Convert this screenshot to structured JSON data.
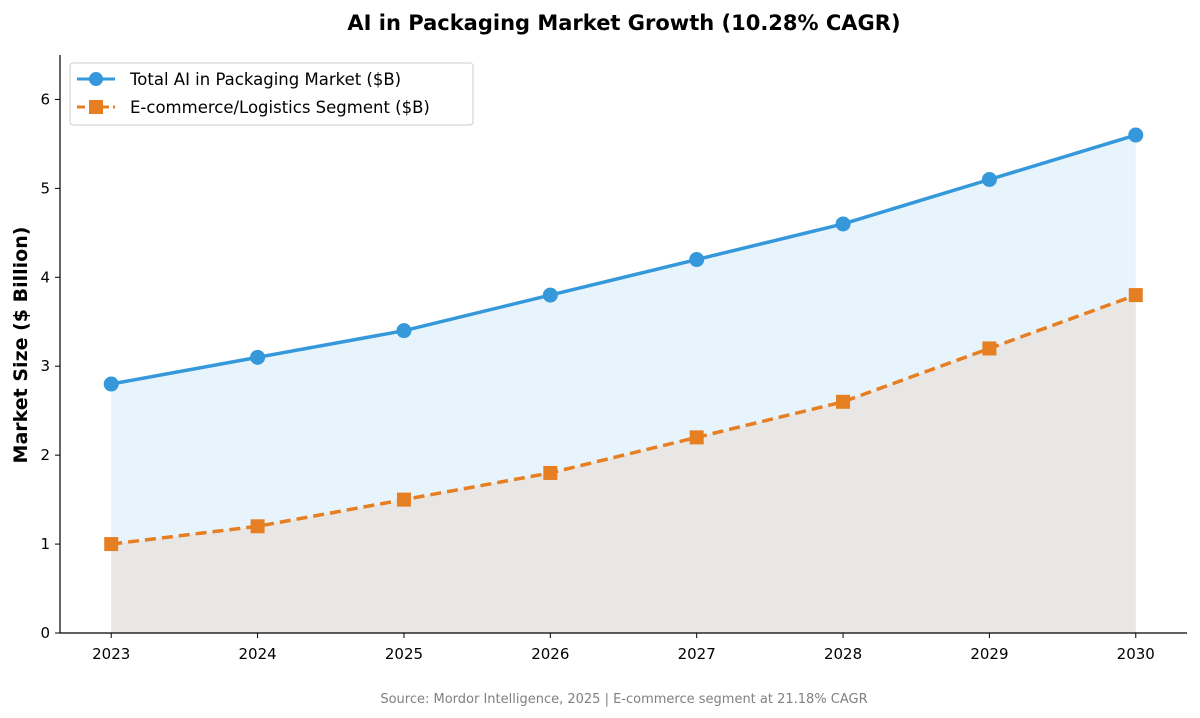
{
  "chart_data": {
    "type": "line",
    "title": "AI in Packaging Market Growth (10.28% CAGR)",
    "xlabel": "",
    "ylabel": "Market Size ($ Billion)",
    "x": [
      2023,
      2024,
      2025,
      2026,
      2027,
      2028,
      2029,
      2030
    ],
    "xlim": [
      2022.65,
      2030.35
    ],
    "ylim": [
      0,
      6.5
    ],
    "yticks": [
      0,
      1,
      2,
      3,
      4,
      5,
      6
    ],
    "grid": false,
    "legend_position": "top-left",
    "series": [
      {
        "name": "Total AI in Packaging Market ($B)",
        "values": [
          2.8,
          3.1,
          3.4,
          3.8,
          4.2,
          4.6,
          5.1,
          5.6
        ],
        "color": "#3498db",
        "marker": "circle",
        "linestyle": "solid",
        "fill": "#e8f4fc"
      },
      {
        "name": "E-commerce/Logistics Segment ($B)",
        "values": [
          1.0,
          1.2,
          1.5,
          1.8,
          2.2,
          2.6,
          3.2,
          3.8
        ],
        "color": "#e67e22",
        "marker": "square",
        "linestyle": "dashed",
        "fill": "#e8e6e2"
      }
    ],
    "footnote": "Source: Mordor Intelligence, 2025 | E-commerce segment at 21.18% CAGR"
  }
}
